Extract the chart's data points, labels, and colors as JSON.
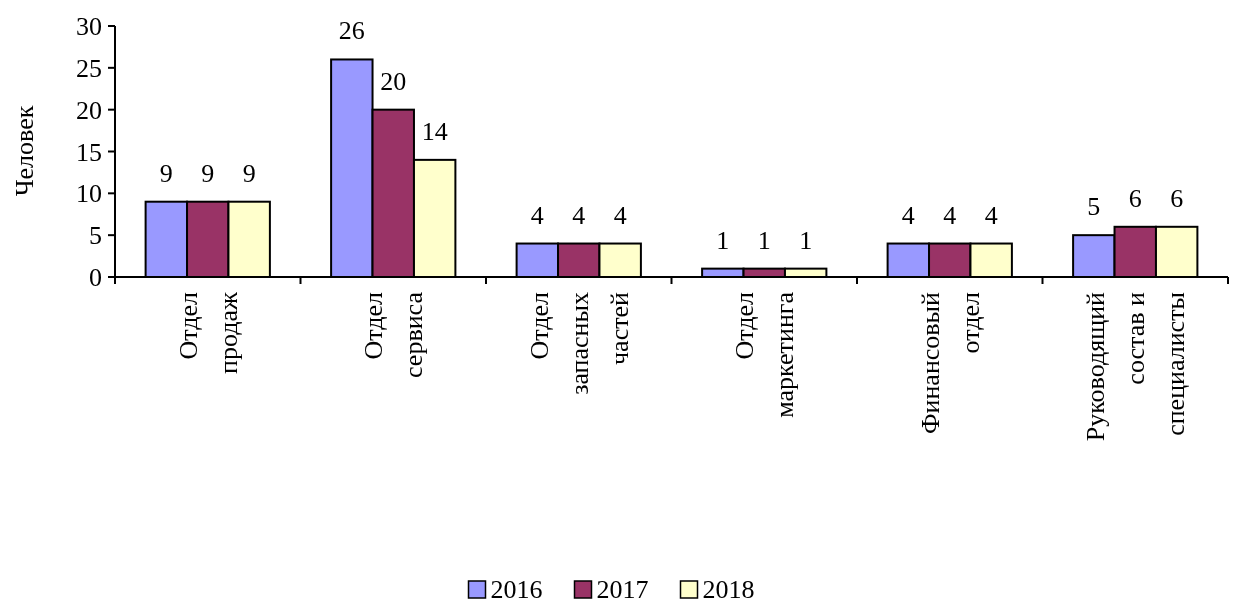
{
  "chart_data": {
    "type": "bar",
    "ylabel": "Человек",
    "categories": [
      "Отдел продаж",
      "Отдел сервиса",
      "Отдел запасных частей",
      "Отдел маркетинга",
      "Финансовый отдел",
      "Руководящий состав и специалисты"
    ],
    "series": [
      {
        "name": "2016",
        "color": "#9999ff",
        "values": [
          9,
          26,
          4,
          1,
          4,
          5
        ]
      },
      {
        "name": "2017",
        "color": "#993366",
        "values": [
          9,
          20,
          4,
          1,
          4,
          6
        ]
      },
      {
        "name": "2018",
        "color": "#ffffcc",
        "values": [
          9,
          14,
          4,
          1,
          4,
          6
        ]
      }
    ],
    "ylim": [
      0,
      30
    ],
    "yticks": [
      0,
      5,
      10,
      15,
      20,
      25,
      30
    ],
    "data_labels": true,
    "legend": "bottom",
    "grid": false
  }
}
